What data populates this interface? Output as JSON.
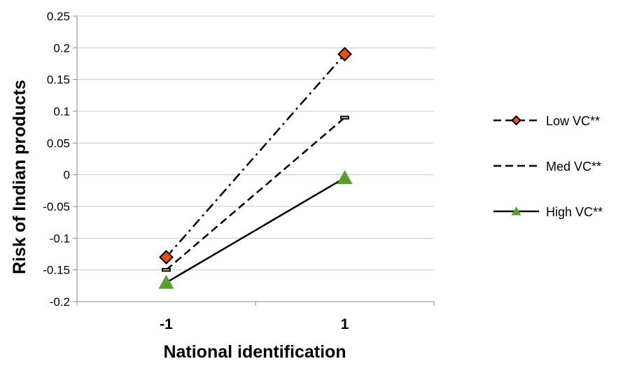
{
  "chart_data": {
    "type": "line",
    "title": "",
    "xlabel": "National identification",
    "ylabel": "Risk of Indian products",
    "categories": [
      "-1",
      "1"
    ],
    "ylim": [
      -0.2,
      0.25
    ],
    "yticks": [
      "0.25",
      "0.2",
      "0.15",
      "0.1",
      "0.05",
      "0",
      "-0.05",
      "-0.1",
      "-0.15",
      "-0.2"
    ],
    "ytick_values": [
      0.25,
      0.2,
      0.15,
      0.1,
      0.05,
      0,
      -0.05,
      -0.1,
      -0.15,
      -0.2
    ],
    "grid": "horizontal",
    "legend_position": "right",
    "series": [
      {
        "name": "Low VC**",
        "values": [
          -0.13,
          0.19
        ],
        "line_style": "dash-dot",
        "marker": "diamond",
        "marker_color": "#e8501a"
      },
      {
        "name": "Med VC**",
        "values": [
          -0.15,
          0.09
        ],
        "line_style": "dashed",
        "marker": "dash",
        "marker_color": "#ffffff"
      },
      {
        "name": "High VC**",
        "values": [
          -0.17,
          -0.005
        ],
        "line_style": "solid",
        "marker": "triangle",
        "marker_color": "#5a9e2e"
      }
    ]
  }
}
